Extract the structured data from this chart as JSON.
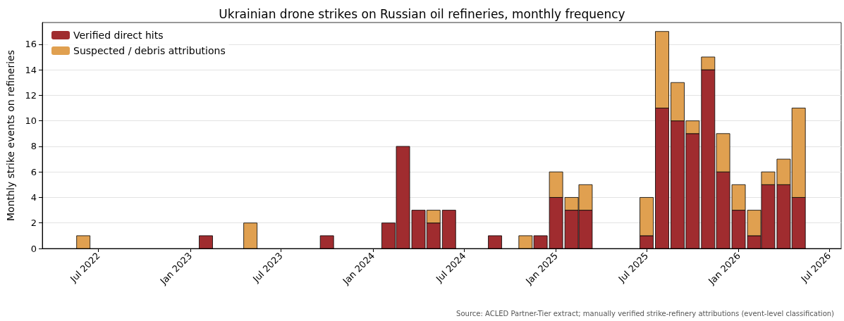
{
  "chart_data": {
    "type": "bar",
    "title": "Ukrainian drone strikes on Russian oil refineries, monthly frequency",
    "ylabel": "Monthly strike events on refineries",
    "stacked": true,
    "grid": "y",
    "legend": "top left",
    "annotations": [
      "Source: ACLED Partner-Tier extract; manually verified strike-refinery attributions (event-level classification)"
    ],
    "x": [
      "2022-06",
      "2022-07",
      "2022-08",
      "2022-09",
      "2022-10",
      "2022-11",
      "2022-12",
      "2023-01",
      "2023-02",
      "2023-03",
      "2023-04",
      "2023-05",
      "2023-06",
      "2023-07",
      "2023-08",
      "2023-09",
      "2023-10",
      "2023-11",
      "2023-12",
      "2024-01",
      "2024-02",
      "2024-03",
      "2024-04",
      "2024-05",
      "2024-06",
      "2024-07",
      "2024-08",
      "2024-09",
      "2024-10",
      "2024-11",
      "2024-12",
      "2025-01",
      "2025-02",
      "2025-03",
      "2025-04",
      "2025-05",
      "2025-06",
      "2025-07",
      "2025-08",
      "2025-09",
      "2025-10",
      "2025-11",
      "2025-12",
      "2026-01",
      "2026-02",
      "2026-03",
      "2026-04",
      "2026-05"
    ],
    "series": [
      {
        "name": "Verified direct hits",
        "color": "#a02c2f",
        "values": [
          0,
          0,
          0,
          0,
          0,
          0,
          0,
          0,
          1,
          0,
          0,
          0,
          0,
          0,
          0,
          0,
          1,
          0,
          0,
          0,
          2,
          8,
          3,
          2,
          3,
          0,
          0,
          1,
          0,
          0,
          1,
          4,
          3,
          3,
          0,
          0,
          0,
          1,
          11,
          10,
          9,
          14,
          6,
          3,
          1,
          5,
          5,
          4
        ]
      },
      {
        "name": "Suspected / debris attributions",
        "color": "#e0a050",
        "values": [
          1,
          0,
          0,
          0,
          0,
          0,
          0,
          0,
          0,
          0,
          0,
          2,
          0,
          0,
          0,
          0,
          0,
          0,
          0,
          0,
          0,
          0,
          0,
          1,
          0,
          0,
          0,
          0,
          0,
          1,
          0,
          2,
          1,
          2,
          0,
          0,
          0,
          3,
          6,
          3,
          1,
          1,
          3,
          2,
          2,
          1,
          2,
          7
        ]
      }
    ],
    "xlim": [
      "2022-03-11",
      "2026-07-25"
    ],
    "xticks": [
      {
        "value": "2022-07",
        "label": "Jul 2022"
      },
      {
        "value": "2023-01",
        "label": "Jan 2023"
      },
      {
        "value": "2023-07",
        "label": "Jul 2023"
      },
      {
        "value": "2024-01",
        "label": "Jan 2024"
      },
      {
        "value": "2024-07",
        "label": "Jul 2024"
      },
      {
        "value": "2025-01",
        "label": "Jan 2025"
      },
      {
        "value": "2025-07",
        "label": "Jul 2025"
      },
      {
        "value": "2026-01",
        "label": "Jan 2026"
      },
      {
        "value": "2026-07",
        "label": "Jul 2026"
      }
    ],
    "ylim": [
      0,
      17.7
    ],
    "yticks": [
      0,
      2,
      4,
      6,
      8,
      10,
      12,
      14,
      16
    ]
  }
}
